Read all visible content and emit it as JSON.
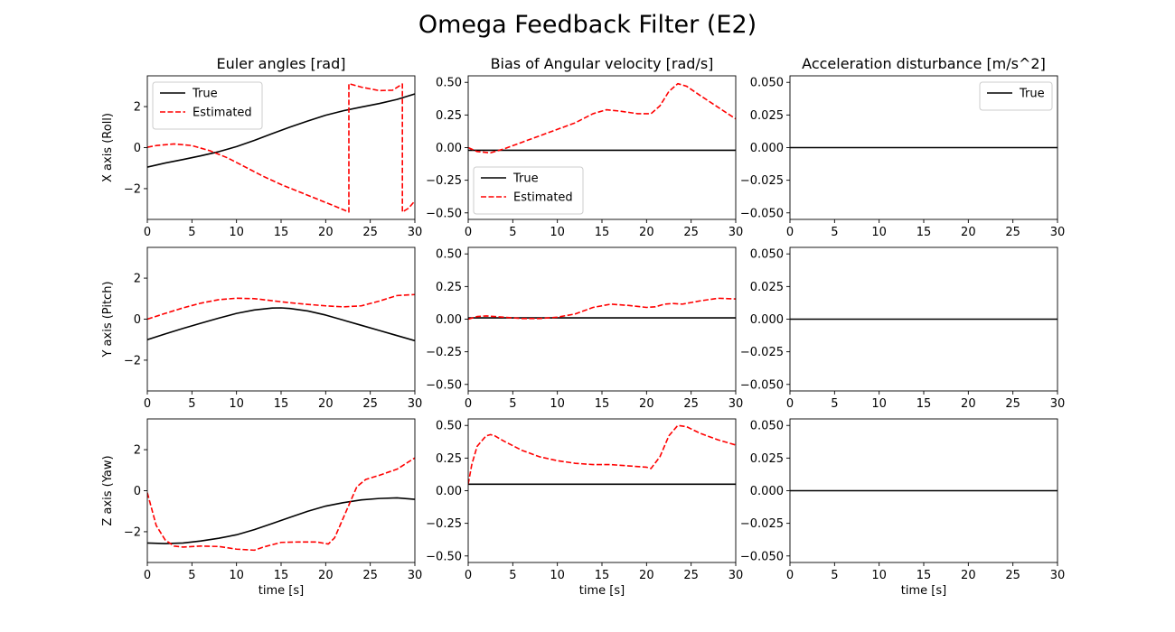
{
  "figure": {
    "title": "Omega Feedback Filter (E2)"
  },
  "colors": {
    "true": "#000000",
    "estimated": "#ff0000"
  },
  "legend_labels": {
    "true": "True",
    "estimated": "Estimated"
  },
  "chart_data": [
    {
      "type": "line",
      "row": 0,
      "col": 0,
      "title": "Euler angles [rad]",
      "ylabel": "X axis (Roll)",
      "xlabel": "",
      "xlim": [
        0,
        30
      ],
      "ylim": [
        -3.5,
        3.5
      ],
      "xticks": [
        0,
        5,
        10,
        15,
        20,
        25,
        30
      ],
      "yticks": [
        -2,
        0,
        2
      ],
      "ytick_labels": [
        "−2",
        "0",
        "2"
      ],
      "legend": "upper left",
      "series": [
        {
          "name": "True",
          "style": "solid",
          "x": [
            0,
            2,
            4,
            6,
            8,
            10,
            12,
            14,
            16,
            18,
            20,
            22,
            24,
            26,
            28,
            30
          ],
          "y": [
            -0.95,
            -0.75,
            -0.58,
            -0.4,
            -0.2,
            0.05,
            0.35,
            0.68,
            1.0,
            1.3,
            1.58,
            1.8,
            1.98,
            2.15,
            2.35,
            2.62
          ]
        },
        {
          "name": "Estimated",
          "style": "dashed",
          "x": [
            0,
            1,
            3,
            5,
            7,
            9,
            11,
            13,
            15,
            17,
            19,
            21,
            22.6,
            22.6,
            24,
            26,
            27.5,
            28.6,
            28.6,
            29.3,
            30
          ],
          "y": [
            0.02,
            0.1,
            0.18,
            0.1,
            -0.15,
            -0.5,
            -0.95,
            -1.4,
            -1.8,
            -2.15,
            -2.5,
            -2.85,
            -3.14,
            3.12,
            2.95,
            2.78,
            2.8,
            3.1,
            -3.14,
            -2.95,
            -2.6
          ]
        }
      ]
    },
    {
      "type": "line",
      "row": 0,
      "col": 1,
      "title": "Bias of Angular velocity [rad/s]",
      "ylabel": "",
      "xlabel": "",
      "xlim": [
        0,
        30
      ],
      "ylim": [
        -0.55,
        0.55
      ],
      "xticks": [
        0,
        5,
        10,
        15,
        20,
        25,
        30
      ],
      "yticks": [
        -0.5,
        -0.25,
        0,
        0.25,
        0.5
      ],
      "ytick_labels": [
        "−0.50",
        "−0.25",
        "0.00",
        "0.25",
        "0.50"
      ],
      "legend": "lower left",
      "series": [
        {
          "name": "True",
          "style": "solid",
          "x": [
            0,
            30
          ],
          "y": [
            -0.02,
            -0.02
          ]
        },
        {
          "name": "Estimated",
          "style": "dashed",
          "x": [
            0,
            1,
            2.5,
            4,
            6,
            8,
            10,
            12,
            14,
            15.5,
            17,
            19,
            20.5,
            21.5,
            22.5,
            23.5,
            24.5,
            26,
            28,
            30
          ],
          "y": [
            0.0,
            -0.03,
            -0.04,
            -0.01,
            0.04,
            0.09,
            0.14,
            0.19,
            0.26,
            0.29,
            0.28,
            0.26,
            0.26,
            0.32,
            0.43,
            0.49,
            0.47,
            0.4,
            0.31,
            0.22
          ]
        }
      ]
    },
    {
      "type": "line",
      "row": 0,
      "col": 2,
      "title": "Acceleration disturbance [m/s^2]",
      "ylabel": "",
      "xlabel": "",
      "xlim": [
        0,
        30
      ],
      "ylim": [
        -0.055,
        0.055
      ],
      "xticks": [
        0,
        5,
        10,
        15,
        20,
        25,
        30
      ],
      "yticks": [
        -0.05,
        -0.025,
        0,
        0.025,
        0.05
      ],
      "ytick_labels": [
        "−0.050",
        "−0.025",
        "0.000",
        "0.025",
        "0.050"
      ],
      "legend": "upper right",
      "series": [
        {
          "name": "True",
          "style": "solid",
          "x": [
            0,
            30
          ],
          "y": [
            0,
            0
          ]
        }
      ]
    },
    {
      "type": "line",
      "row": 1,
      "col": 0,
      "title": "",
      "ylabel": "Y axis (Pitch)",
      "xlabel": "",
      "xlim": [
        0,
        30
      ],
      "ylim": [
        -3.5,
        3.5
      ],
      "xticks": [
        0,
        5,
        10,
        15,
        20,
        25,
        30
      ],
      "yticks": [
        -2,
        0,
        2
      ],
      "ytick_labels": [
        "−2",
        "0",
        "2"
      ],
      "legend": "",
      "series": [
        {
          "name": "True",
          "style": "solid",
          "x": [
            0,
            2,
            4,
            6,
            8,
            10,
            12,
            14,
            15,
            16,
            18,
            20,
            22,
            24,
            26,
            28,
            30
          ],
          "y": [
            -1.0,
            -0.72,
            -0.45,
            -0.2,
            0.05,
            0.28,
            0.45,
            0.54,
            0.55,
            0.52,
            0.4,
            0.2,
            -0.05,
            -0.3,
            -0.55,
            -0.8,
            -1.05
          ]
        },
        {
          "name": "Estimated",
          "style": "dashed",
          "x": [
            0,
            2,
            4,
            6,
            8,
            10,
            12,
            14,
            16,
            18,
            20,
            22,
            24,
            26,
            28,
            30
          ],
          "y": [
            0.0,
            0.28,
            0.55,
            0.78,
            0.95,
            1.02,
            1.0,
            0.9,
            0.8,
            0.72,
            0.65,
            0.6,
            0.65,
            0.88,
            1.15,
            1.2
          ]
        }
      ]
    },
    {
      "type": "line",
      "row": 1,
      "col": 1,
      "title": "",
      "ylabel": "",
      "xlabel": "",
      "xlim": [
        0,
        30
      ],
      "ylim": [
        -0.55,
        0.55
      ],
      "xticks": [
        0,
        5,
        10,
        15,
        20,
        25,
        30
      ],
      "yticks": [
        -0.5,
        -0.25,
        0,
        0.25,
        0.5
      ],
      "ytick_labels": [
        "−0.50",
        "−0.25",
        "0.00",
        "0.25",
        "0.50"
      ],
      "legend": "",
      "series": [
        {
          "name": "True",
          "style": "solid",
          "x": [
            0,
            30
          ],
          "y": [
            0.01,
            0.01
          ]
        },
        {
          "name": "Estimated",
          "style": "dashed",
          "x": [
            0,
            1,
            2,
            4,
            6,
            8,
            10,
            12,
            14,
            16,
            18,
            20,
            21,
            22,
            23,
            24,
            26,
            28,
            30
          ],
          "y": [
            0.0,
            0.02,
            0.025,
            0.015,
            0.005,
            0.005,
            0.015,
            0.04,
            0.09,
            0.115,
            0.105,
            0.09,
            0.095,
            0.115,
            0.12,
            0.115,
            0.14,
            0.16,
            0.155
          ]
        }
      ]
    },
    {
      "type": "line",
      "row": 1,
      "col": 2,
      "title": "",
      "ylabel": "",
      "xlabel": "",
      "xlim": [
        0,
        30
      ],
      "ylim": [
        -0.055,
        0.055
      ],
      "xticks": [
        0,
        5,
        10,
        15,
        20,
        25,
        30
      ],
      "yticks": [
        -0.05,
        -0.025,
        0,
        0.025,
        0.05
      ],
      "ytick_labels": [
        "−0.050",
        "−0.025",
        "0.000",
        "0.025",
        "0.050"
      ],
      "legend": "",
      "series": [
        {
          "name": "True",
          "style": "solid",
          "x": [
            0,
            30
          ],
          "y": [
            0,
            0
          ]
        }
      ]
    },
    {
      "type": "line",
      "row": 2,
      "col": 0,
      "title": "",
      "ylabel": "Z axis (Yaw)",
      "xlabel": "time [s]",
      "xlim": [
        0,
        30
      ],
      "ylim": [
        -3.5,
        3.5
      ],
      "xticks": [
        0,
        5,
        10,
        15,
        20,
        25,
        30
      ],
      "yticks": [
        -2,
        0,
        2
      ],
      "ytick_labels": [
        "−2",
        "0",
        "2"
      ],
      "legend": "",
      "series": [
        {
          "name": "True",
          "style": "solid",
          "x": [
            0,
            2,
            4,
            6,
            8,
            10,
            12,
            14,
            16,
            18,
            20,
            22,
            24,
            26,
            28,
            30
          ],
          "y": [
            -2.55,
            -2.58,
            -2.55,
            -2.45,
            -2.32,
            -2.15,
            -1.9,
            -1.6,
            -1.3,
            -1.0,
            -0.75,
            -0.58,
            -0.45,
            -0.38,
            -0.35,
            -0.42
          ]
        },
        {
          "name": "Estimated",
          "style": "dashed",
          "x": [
            0,
            0.5,
            1,
            2,
            3,
            4,
            6,
            8,
            10,
            12,
            13,
            15,
            17,
            19,
            20.3,
            21,
            22,
            22.8,
            23.5,
            24.5,
            26,
            28,
            30
          ],
          "y": [
            -0.1,
            -0.9,
            -1.7,
            -2.4,
            -2.7,
            -2.75,
            -2.7,
            -2.72,
            -2.85,
            -2.9,
            -2.75,
            -2.52,
            -2.5,
            -2.5,
            -2.6,
            -2.3,
            -1.3,
            -0.5,
            0.2,
            0.55,
            0.75,
            1.05,
            1.6
          ]
        }
      ]
    },
    {
      "type": "line",
      "row": 2,
      "col": 1,
      "title": "",
      "ylabel": "",
      "xlabel": "time [s]",
      "xlim": [
        0,
        30
      ],
      "ylim": [
        -0.55,
        0.55
      ],
      "xticks": [
        0,
        5,
        10,
        15,
        20,
        25,
        30
      ],
      "yticks": [
        -0.5,
        -0.25,
        0,
        0.25,
        0.5
      ],
      "ytick_labels": [
        "−0.50",
        "−0.25",
        "0.00",
        "0.25",
        "0.50"
      ],
      "legend": "",
      "series": [
        {
          "name": "True",
          "style": "solid",
          "x": [
            0,
            30
          ],
          "y": [
            0.05,
            0.05
          ]
        },
        {
          "name": "Estimated",
          "style": "dashed",
          "x": [
            0,
            0.4,
            1,
            2,
            2.5,
            3,
            4,
            6,
            8,
            10,
            12,
            14,
            16,
            18,
            20,
            20.5,
            21.5,
            22.5,
            23.5,
            24.5,
            26,
            28,
            30
          ],
          "y": [
            0.05,
            0.2,
            0.34,
            0.42,
            0.43,
            0.42,
            0.38,
            0.31,
            0.26,
            0.23,
            0.21,
            0.2,
            0.2,
            0.19,
            0.18,
            0.17,
            0.26,
            0.42,
            0.5,
            0.49,
            0.44,
            0.39,
            0.35
          ]
        }
      ]
    },
    {
      "type": "line",
      "row": 2,
      "col": 2,
      "title": "",
      "ylabel": "",
      "xlabel": "time [s]",
      "xlim": [
        0,
        30
      ],
      "ylim": [
        -0.055,
        0.055
      ],
      "xticks": [
        0,
        5,
        10,
        15,
        20,
        25,
        30
      ],
      "yticks": [
        -0.05,
        -0.025,
        0,
        0.025,
        0.05
      ],
      "ytick_labels": [
        "−0.050",
        "−0.025",
        "0.000",
        "0.025",
        "0.050"
      ],
      "legend": "",
      "series": [
        {
          "name": "True",
          "style": "solid",
          "x": [
            0,
            30
          ],
          "y": [
            0,
            0
          ]
        }
      ]
    }
  ]
}
